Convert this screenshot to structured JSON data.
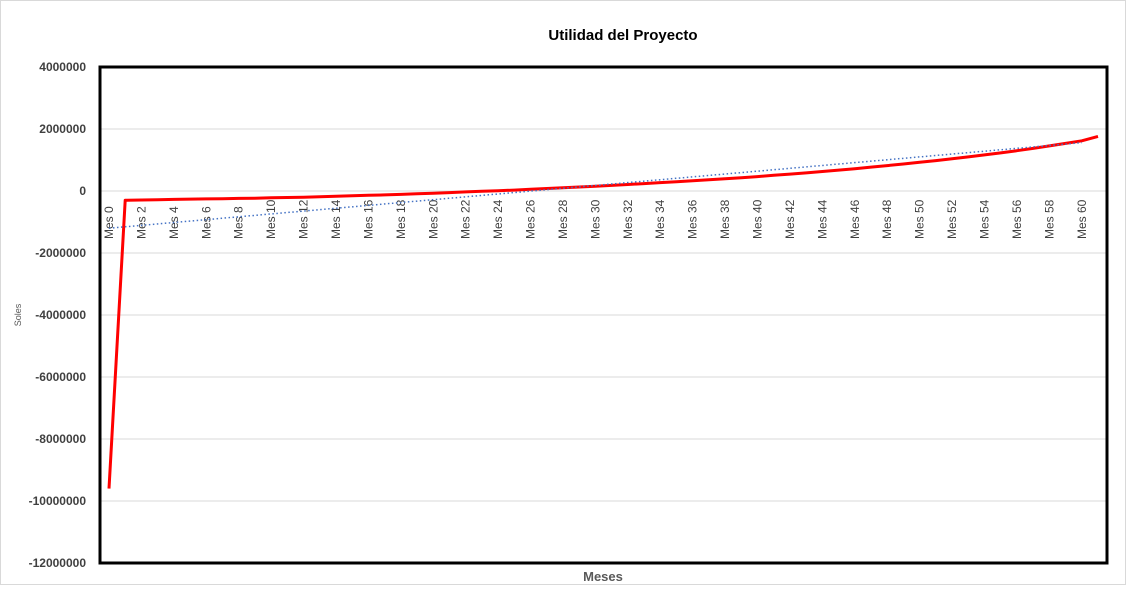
{
  "chart_data": {
    "type": "line",
    "title": "Utilidad del Proyecto",
    "xlabel": "Meses",
    "ylabel": "Soles",
    "ylim": [
      -12000000,
      4000000
    ],
    "yticks": [
      4000000,
      2000000,
      0,
      -2000000,
      -4000000,
      -6000000,
      -8000000,
      -10000000,
      -12000000
    ],
    "x_tick_labels": [
      "Mes 0",
      "Mes 2",
      "Mes 4",
      "Mes 6",
      "Mes 8",
      "Mes 10",
      "Mes 12",
      "Mes 14",
      "Mes 16",
      "Mes 18",
      "Mes 20",
      "Mes 22",
      "Mes 24",
      "Mes 26",
      "Mes 28",
      "Mes 30",
      "Mes 32",
      "Mes 34",
      "Mes 36",
      "Mes 38",
      "Mes 40",
      "Mes 42",
      "Mes 44",
      "Mes 46",
      "Mes 48",
      "Mes 50",
      "Mes 52",
      "Mes 54",
      "Mes 56",
      "Mes 58",
      "Mes 60"
    ],
    "grid": true,
    "legend": "none",
    "series": [
      {
        "values": [
          -9600000,
          -300000,
          -290000,
          -280000,
          -270000,
          -262000,
          -255000,
          -248000,
          -240000,
          -232000,
          -220000,
          -210000,
          -200000,
          -185000,
          -170000,
          -155000,
          -140000,
          -125000,
          -110000,
          -90000,
          -70000,
          -50000,
          -30000,
          -10000,
          10000,
          30000,
          55000,
          80000,
          105000,
          130000,
          155000,
          180000,
          210000,
          240000,
          270000,
          300000,
          330000,
          360000,
          395000,
          430000,
          465000,
          505000,
          545000,
          585000,
          630000,
          675000,
          720000,
          770000,
          820000,
          870000,
          925000,
          980000,
          1040000,
          1100000,
          1165000,
          1230000,
          1300000,
          1375000,
          1455000,
          1535000,
          1620000,
          1760000
        ],
        "color": "#ff0000"
      },
      {
        "type": "trendline",
        "style": "dotted",
        "start": [
          0,
          -1200000
        ],
        "end": [
          60,
          1560000
        ],
        "color": "#4472c4"
      }
    ],
    "plot_area_border": "#000000",
    "gridline_color": "#d9d9d9"
  }
}
